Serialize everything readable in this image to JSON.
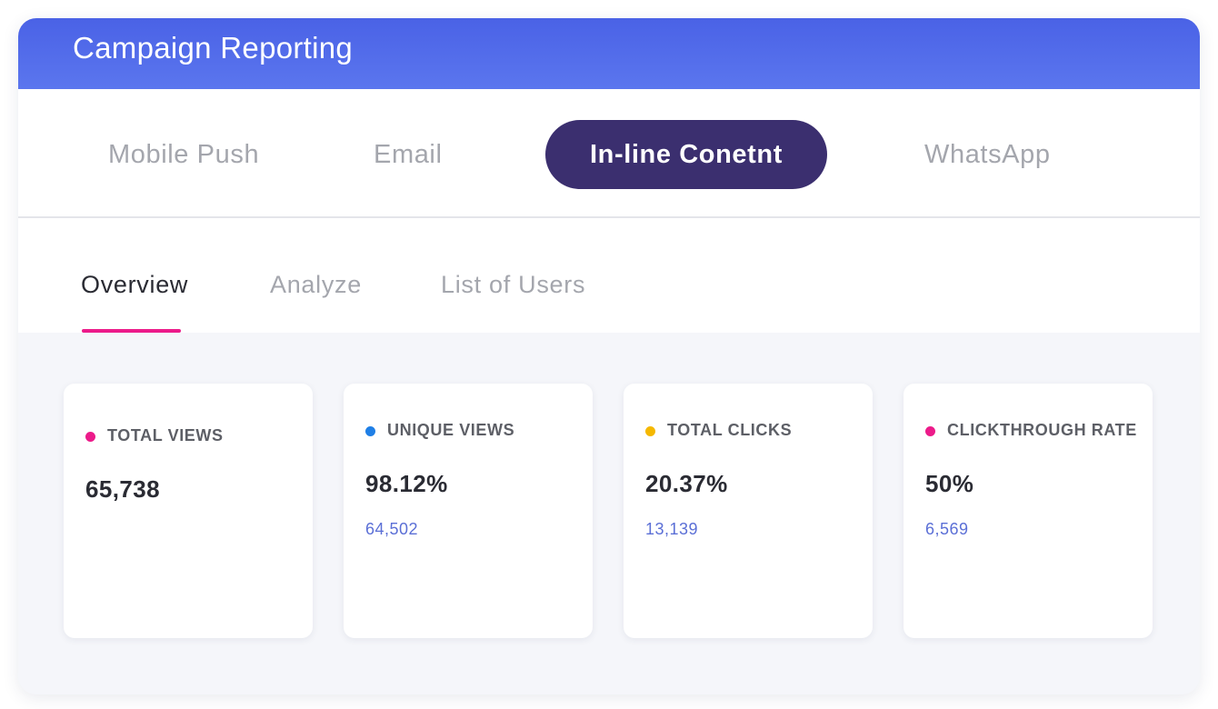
{
  "header": {
    "title": "Campaign Reporting",
    "color": "#4a62e6"
  },
  "channels": {
    "active": "In-line Conetnt",
    "active_color": "#3b2f6f",
    "items": [
      {
        "label": "Mobile Push"
      },
      {
        "label": "Email"
      },
      {
        "label": "In-line Conetnt"
      },
      {
        "label": "WhatsApp"
      }
    ]
  },
  "subtabs": {
    "active": "Overview",
    "underline_color": "#ec1b8a",
    "items": [
      {
        "label": "Overview"
      },
      {
        "label": "Analyze"
      },
      {
        "label": "List of Users"
      }
    ]
  },
  "metrics": [
    {
      "label": "TOTAL VIEWS",
      "value": "65,738",
      "sub": "",
      "dot_color": "#ec1b8a"
    },
    {
      "label": "UNIQUE VIEWS",
      "value": "98.12%",
      "sub": "64,502",
      "dot_color": "#1f7fe6"
    },
    {
      "label": "TOTAL CLICKS",
      "value": "20.37%",
      "sub": "13,139",
      "dot_color": "#f5b800"
    },
    {
      "label": "CLICKTHROUGH RATE",
      "value": "50%",
      "sub": "6,569",
      "dot_color": "#ec1b8a"
    }
  ]
}
